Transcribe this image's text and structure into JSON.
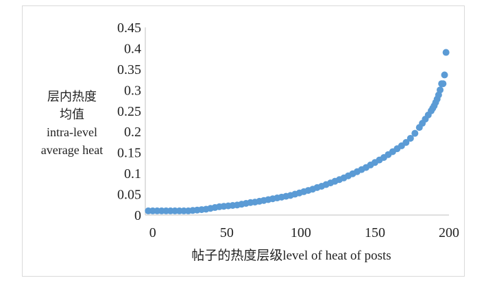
{
  "chart_data": {
    "type": "scatter",
    "title": "",
    "ylabel_lines": [
      "层内热度",
      "均值",
      "intra-level",
      "average heat"
    ],
    "xlabel": "帖子的热度层级level of heat of posts",
    "xlim": [
      -5,
      200
    ],
    "ylim": [
      0,
      0.45
    ],
    "x_ticks": [
      "0",
      "50",
      "100",
      "150",
      "200"
    ],
    "y_ticks": [
      "0",
      "0.05",
      "0.1",
      "0.15",
      "0.2",
      "0.25",
      "0.3",
      "0.35",
      "0.4",
      "0.45"
    ],
    "grid": false,
    "legend": "none",
    "series": [
      {
        "color": "#5b9bd5",
        "x": [
          -3,
          0,
          3,
          6,
          9,
          12,
          15,
          18,
          21,
          24,
          27,
          30,
          33,
          36,
          39,
          42,
          45,
          48,
          51,
          54,
          57,
          60,
          63,
          66,
          69,
          72,
          75,
          78,
          81,
          84,
          87,
          90,
          93,
          96,
          99,
          102,
          105,
          108,
          111,
          114,
          117,
          120,
          123,
          126,
          129,
          132,
          135,
          138,
          141,
          144,
          147,
          150,
          153,
          156,
          159,
          162,
          165,
          168,
          171,
          174,
          177,
          180,
          182,
          184,
          186,
          188,
          189,
          190,
          191,
          192,
          193,
          194,
          195,
          196,
          197,
          198
        ],
        "y": [
          0.01,
          0.01,
          0.01,
          0.01,
          0.01,
          0.01,
          0.01,
          0.01,
          0.01,
          0.01,
          0.011,
          0.012,
          0.013,
          0.014,
          0.016,
          0.018,
          0.02,
          0.021,
          0.022,
          0.023,
          0.024,
          0.026,
          0.028,
          0.03,
          0.031,
          0.033,
          0.035,
          0.037,
          0.039,
          0.041,
          0.043,
          0.045,
          0.047,
          0.05,
          0.053,
          0.056,
          0.059,
          0.062,
          0.066,
          0.069,
          0.073,
          0.077,
          0.081,
          0.085,
          0.089,
          0.094,
          0.099,
          0.104,
          0.109,
          0.114,
          0.12,
          0.126,
          0.132,
          0.138,
          0.145,
          0.152,
          0.159,
          0.166,
          0.174,
          0.184,
          0.196,
          0.21,
          0.22,
          0.23,
          0.24,
          0.25,
          0.256,
          0.262,
          0.27,
          0.278,
          0.288,
          0.3,
          0.315,
          0.315,
          0.336,
          0.39
        ]
      }
    ]
  }
}
